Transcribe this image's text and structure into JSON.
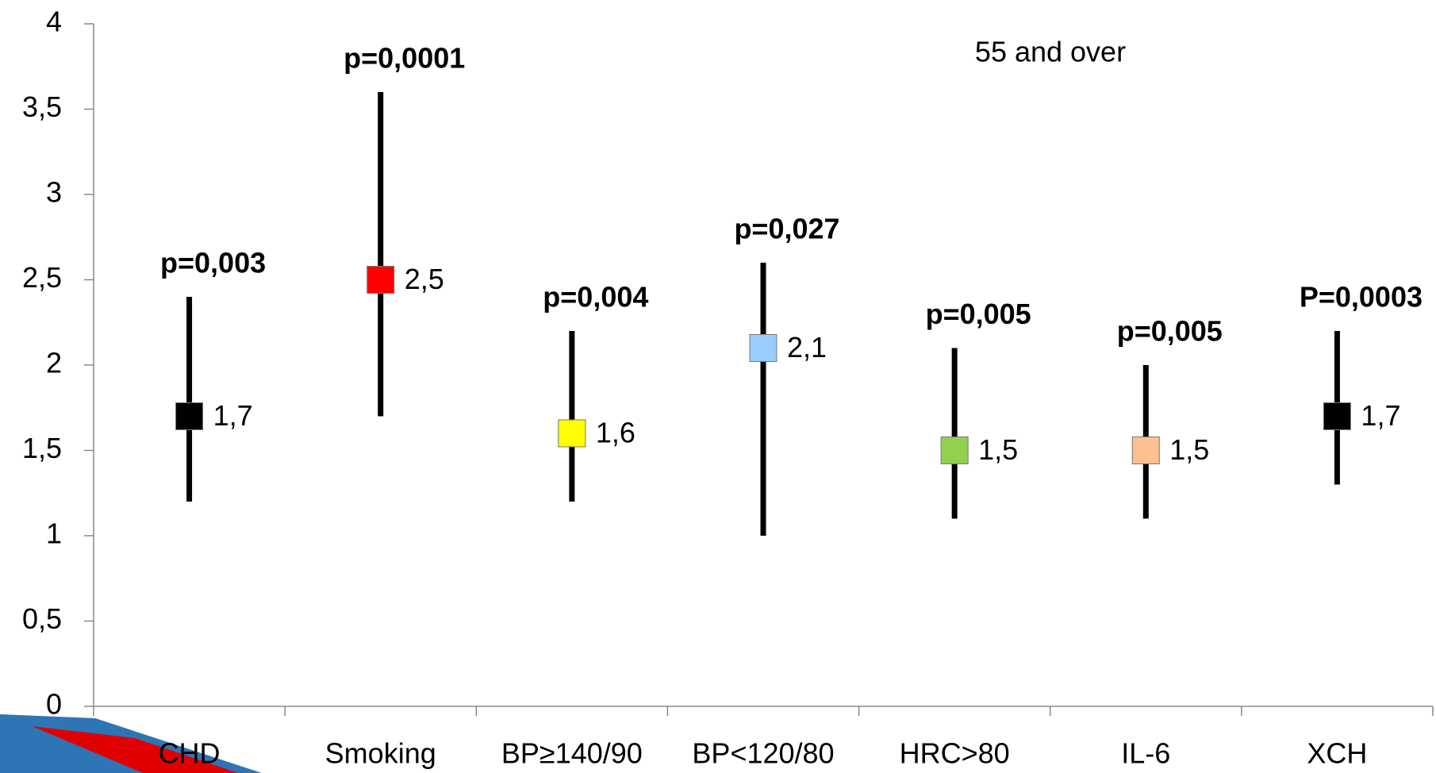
{
  "chart_data": {
    "type": "interval",
    "annotation": "55 and over",
    "categories": [
      "CHD",
      "Smoking",
      "BP≥140/90",
      "BP<120/80",
      "HRC>80",
      "IL-6",
      "XCH"
    ],
    "values": [
      1.7,
      2.5,
      1.6,
      2.1,
      1.5,
      1.5,
      1.7
    ],
    "value_labels": [
      "1,7",
      "2,5",
      "1,6",
      "2,1",
      "1,5",
      "1,5",
      "1,7"
    ],
    "lower": [
      1.2,
      1.7,
      1.2,
      1.0,
      1.1,
      1.1,
      1.3
    ],
    "upper": [
      2.4,
      3.6,
      2.2,
      2.6,
      2.1,
      2.0,
      2.2
    ],
    "p_values": [
      "p=0,003",
      "p=0,0001",
      "p=0,004",
      "p=0,027",
      "p=0,005",
      "p=0,005",
      "P=0,0003"
    ],
    "colors": [
      "#000000",
      "#ff0000",
      "#ffff00",
      "#99ccff",
      "#92d050",
      "#fac090",
      "#000000"
    ],
    "ylim": [
      0,
      4
    ],
    "yticks": [
      0,
      {
        "value": 0.5,
        "label": "0,5"
      },
      1,
      {
        "value": 1.5,
        "label": "1,5"
      },
      2,
      {
        "value": 2.5,
        "label": "2,5"
      },
      3,
      {
        "value": 3.5,
        "label": "3,5"
      },
      4
    ],
    "grid": false
  }
}
